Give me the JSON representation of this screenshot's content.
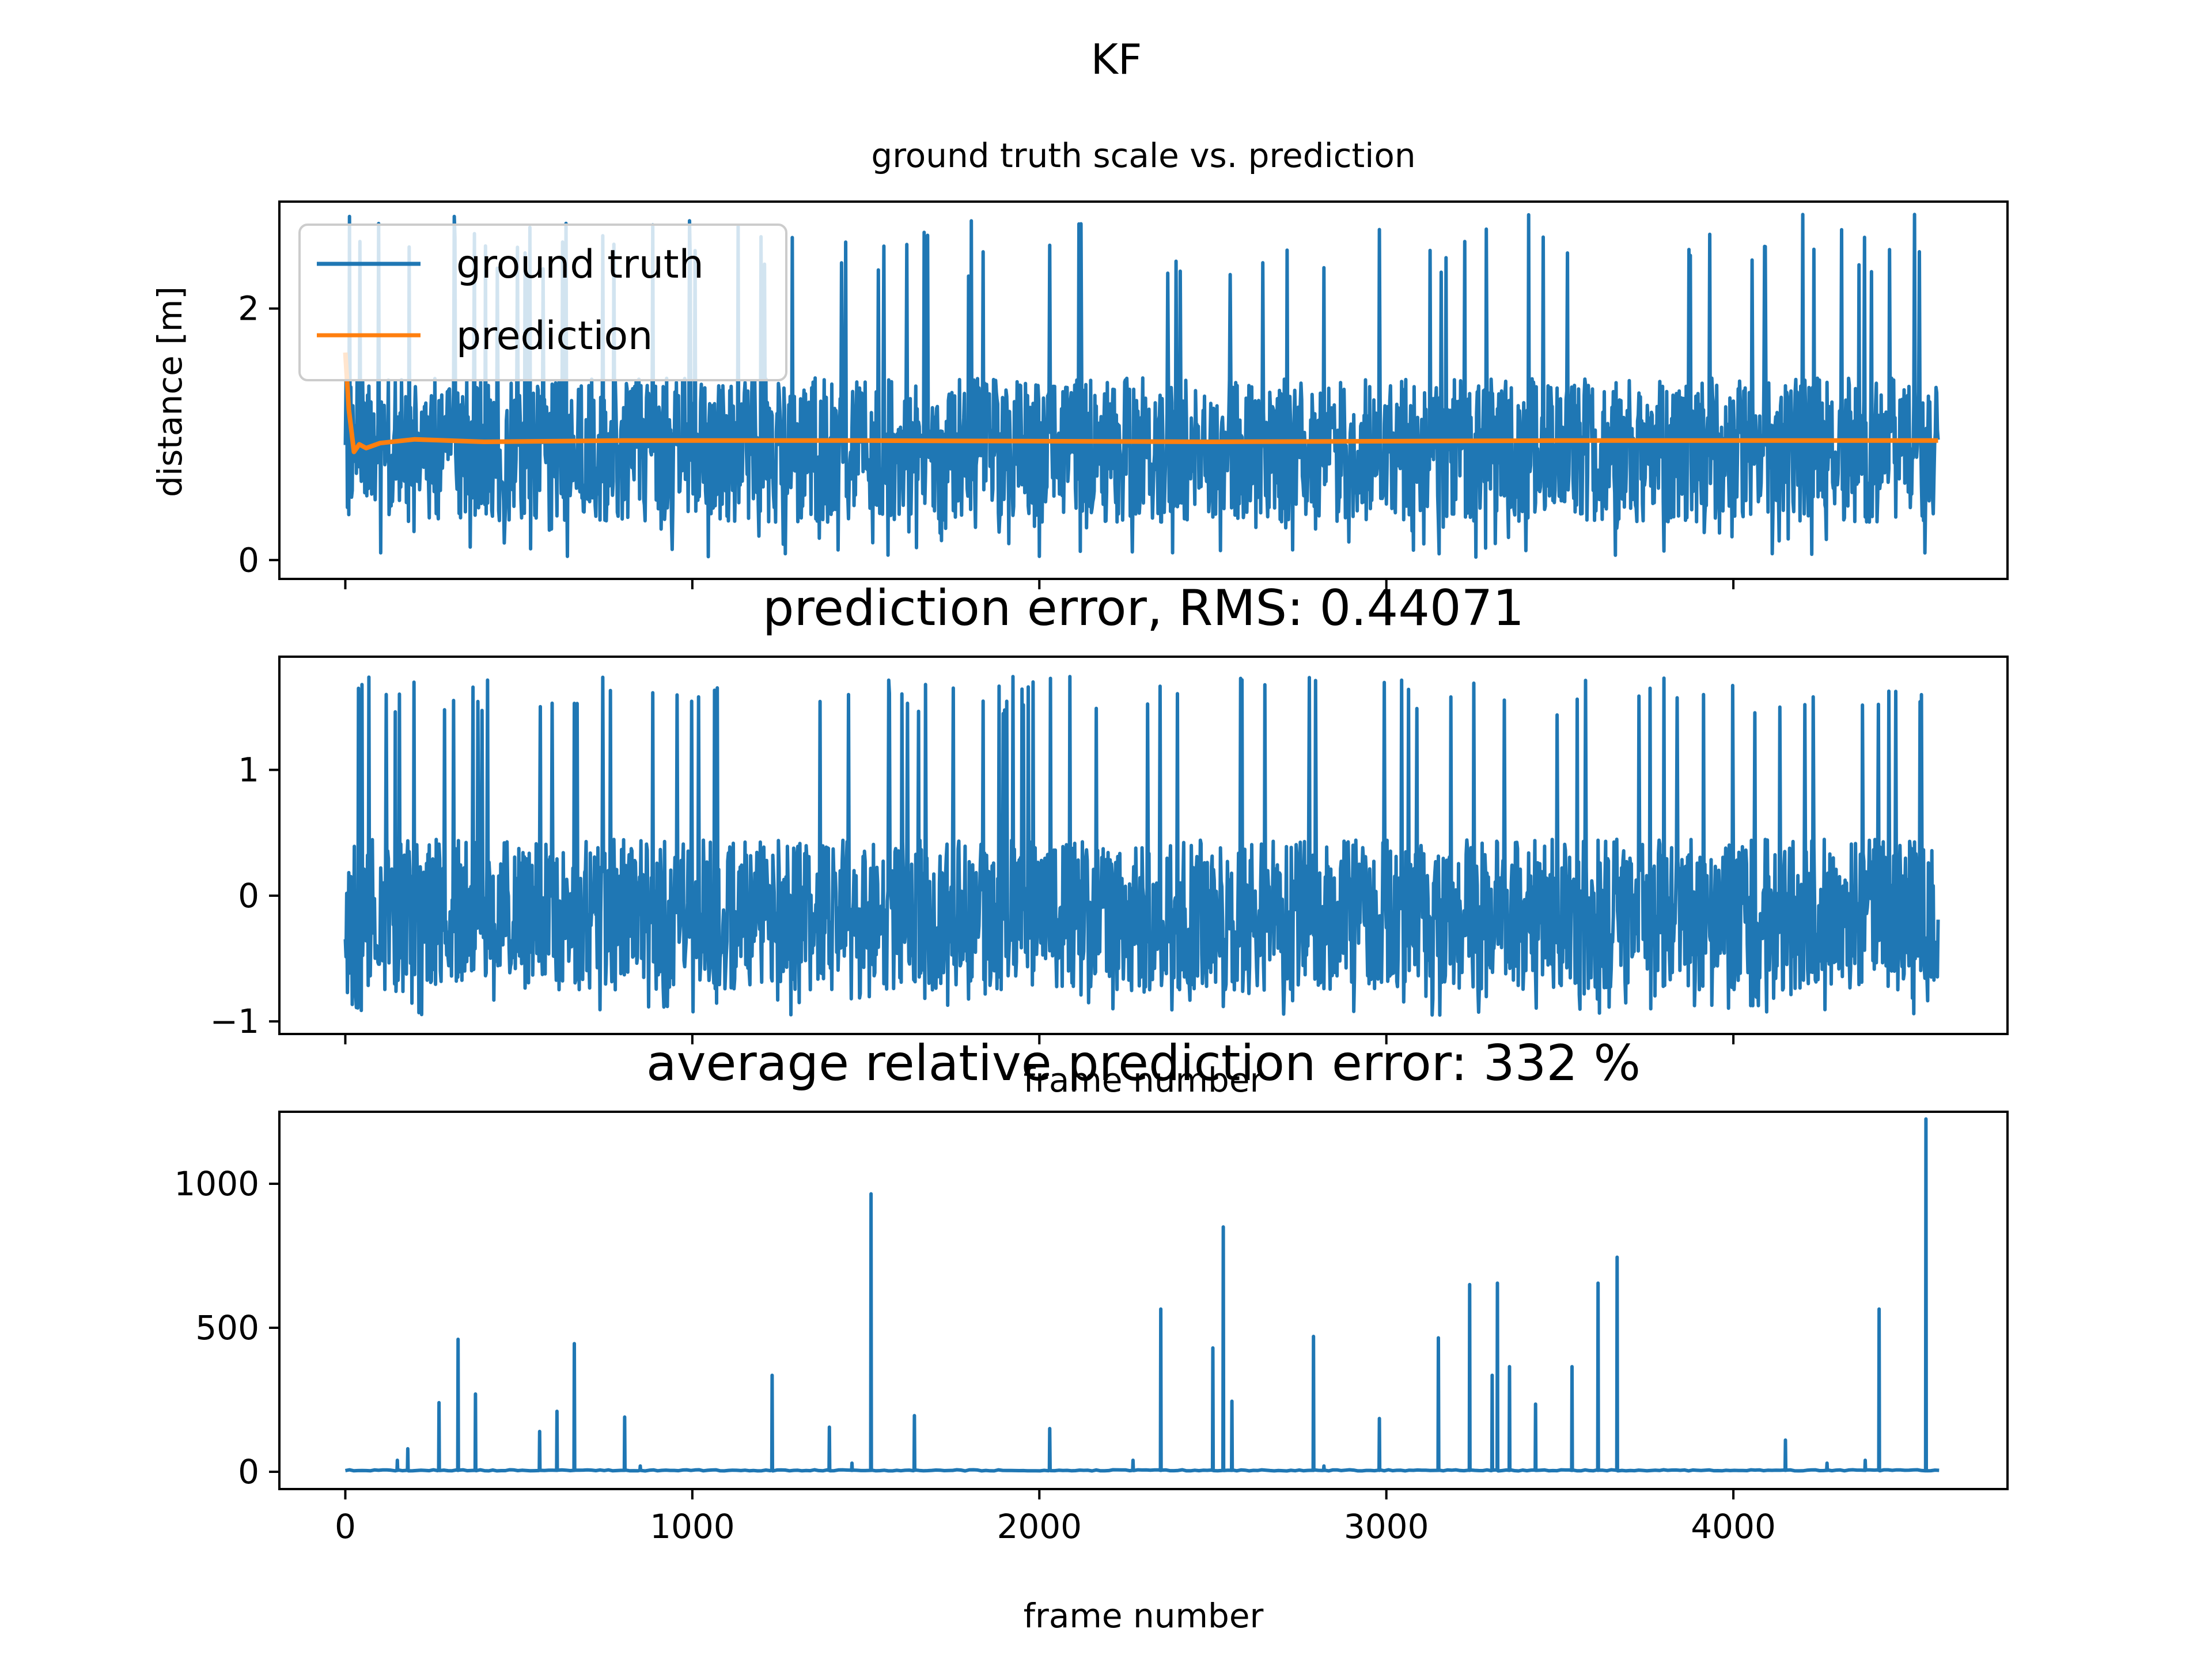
{
  "figure": {
    "suptitle": "KF",
    "colors": {
      "ground_truth": "#1f77b4",
      "prediction": "#ff7f0e",
      "error": "#1f77b4"
    }
  },
  "chart_data": [
    {
      "type": "line",
      "title": "ground truth scale vs. prediction",
      "xlabel": "",
      "ylabel": "distance [m]",
      "xlim": [
        -190,
        4790
      ],
      "ylim": [
        -0.15,
        2.85
      ],
      "xticks": [
        0,
        1000,
        2000,
        3000,
        4000
      ],
      "xtick_labels_visible": false,
      "yticks": [
        0,
        2
      ],
      "ytick_labels": [
        "0",
        "2"
      ],
      "grid": false,
      "legend": {
        "placement": "upper-left",
        "entries": [
          "ground truth",
          "prediction"
        ]
      },
      "frame_count": 4590,
      "series": [
        {
          "name": "ground truth",
          "color": "#1f77b4",
          "pattern": "noisy oscillation between ~0.1 and ~1.4 with frequent spikes to ~2.7",
          "x_range": [
            0,
            4590
          ],
          "baseline_low": 0.3,
          "baseline_high": 1.45,
          "spike_max": 2.75
        },
        {
          "name": "prediction",
          "color": "#ff7f0e",
          "pattern": "starts ~1.65, dips ~0.85, settles ~0.95",
          "x": [
            0,
            10,
            25,
            40,
            60,
            100,
            200,
            400,
            800,
            1500,
            2500,
            3500,
            4590
          ],
          "y": [
            1.65,
            1.2,
            0.86,
            0.92,
            0.89,
            0.93,
            0.96,
            0.94,
            0.95,
            0.95,
            0.94,
            0.95,
            0.95
          ]
        }
      ]
    },
    {
      "type": "line",
      "title": "prediction error, RMS: 0.44071",
      "xlabel": "frame number",
      "ylabel": "",
      "xlim": [
        -190,
        4790
      ],
      "ylim": [
        -1.1,
        1.9
      ],
      "xticks": [
        0,
        1000,
        2000,
        3000,
        4000
      ],
      "xtick_labels_visible": false,
      "yticks": [
        -1,
        0,
        1
      ],
      "ytick_labels": [
        "−1",
        "0",
        "1"
      ],
      "grid": false,
      "series": [
        {
          "name": "",
          "color": "#1f77b4",
          "pattern": "noise between ~-0.95 and ~0.5 with spikes to ~1.75",
          "x_range": [
            0,
            4590
          ],
          "baseline_low": -0.75,
          "baseline_high": 0.45,
          "spike_max": 1.75,
          "floor": -0.95
        }
      ]
    },
    {
      "type": "line",
      "title": "average relative prediction error: 332 %",
      "xlabel": "frame number",
      "ylabel": "",
      "xlim": [
        -190,
        4790
      ],
      "ylim": [
        -60,
        1250
      ],
      "xticks": [
        0,
        1000,
        2000,
        3000,
        4000
      ],
      "xtick_labels": [
        "0",
        "1000",
        "2000",
        "3000",
        "4000"
      ],
      "yticks": [
        0,
        500,
        1000
      ],
      "ytick_labels": [
        "0",
        "500",
        "1000"
      ],
      "grid": false,
      "series": [
        {
          "name": "",
          "color": "#1f77b4",
          "baseline": 5,
          "spikes": [
            {
              "x": 150,
              "y": 40
            },
            {
              "x": 180,
              "y": 80
            },
            {
              "x": 270,
              "y": 240
            },
            {
              "x": 325,
              "y": 460
            },
            {
              "x": 375,
              "y": 270
            },
            {
              "x": 560,
              "y": 140
            },
            {
              "x": 610,
              "y": 210
            },
            {
              "x": 660,
              "y": 445
            },
            {
              "x": 805,
              "y": 190
            },
            {
              "x": 850,
              "y": 20
            },
            {
              "x": 1230,
              "y": 335
            },
            {
              "x": 1395,
              "y": 155
            },
            {
              "x": 1460,
              "y": 30
            },
            {
              "x": 1515,
              "y": 965
            },
            {
              "x": 1640,
              "y": 195
            },
            {
              "x": 2030,
              "y": 150
            },
            {
              "x": 2270,
              "y": 40
            },
            {
              "x": 2350,
              "y": 565
            },
            {
              "x": 2500,
              "y": 430
            },
            {
              "x": 2530,
              "y": 850
            },
            {
              "x": 2555,
              "y": 245
            },
            {
              "x": 2790,
              "y": 470
            },
            {
              "x": 2820,
              "y": 20
            },
            {
              "x": 2980,
              "y": 185
            },
            {
              "x": 3150,
              "y": 465
            },
            {
              "x": 3240,
              "y": 650
            },
            {
              "x": 3305,
              "y": 335
            },
            {
              "x": 3320,
              "y": 655
            },
            {
              "x": 3355,
              "y": 365
            },
            {
              "x": 3430,
              "y": 235
            },
            {
              "x": 3535,
              "y": 365
            },
            {
              "x": 3610,
              "y": 655
            },
            {
              "x": 3665,
              "y": 745
            },
            {
              "x": 4150,
              "y": 110
            },
            {
              "x": 4270,
              "y": 30
            },
            {
              "x": 4380,
              "y": 40
            },
            {
              "x": 4420,
              "y": 565
            },
            {
              "x": 4555,
              "y": 1225
            }
          ]
        }
      ]
    }
  ]
}
